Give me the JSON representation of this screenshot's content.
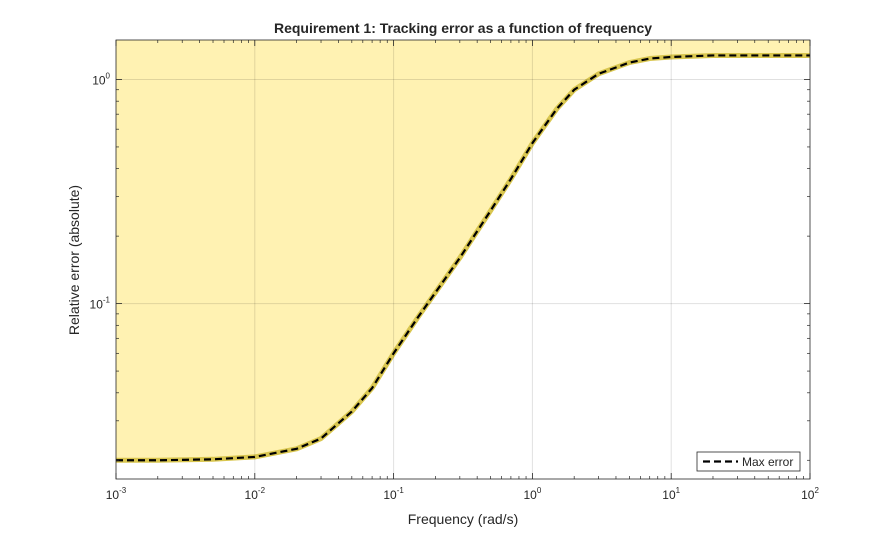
{
  "chart_data": {
    "type": "line",
    "title": "Requirement 1: Tracking error as a function of frequency",
    "xlabel": "Frequency (rad/s)",
    "ylabel": "Relative error (absolute)",
    "xscale": "log",
    "yscale": "log",
    "xlim": [
      0.001,
      100
    ],
    "ylim": [
      0.0165,
      1.5
    ],
    "grid": true,
    "legend_position": "bottom-right",
    "xticks": [
      {
        "base": "10",
        "exp": "-3",
        "value": 0.001
      },
      {
        "base": "10",
        "exp": "-2",
        "value": 0.01
      },
      {
        "base": "10",
        "exp": "-1",
        "value": 0.1
      },
      {
        "base": "10",
        "exp": "0",
        "value": 1
      },
      {
        "base": "10",
        "exp": "1",
        "value": 10
      },
      {
        "base": "10",
        "exp": "2",
        "value": 100
      }
    ],
    "yticks": [
      {
        "base": "10",
        "exp": "-1",
        "value": 0.1
      },
      {
        "base": "10",
        "exp": "0",
        "value": 1
      }
    ],
    "series": [
      {
        "name": "Max error",
        "style": "dashed",
        "color": "#000000",
        "x": [
          0.001,
          0.002,
          0.005,
          0.01,
          0.02,
          0.03,
          0.05,
          0.07,
          0.1,
          0.15,
          0.2,
          0.3,
          0.5,
          0.7,
          1,
          1.5,
          2,
          3,
          5,
          7,
          10,
          20,
          50,
          100
        ],
        "y": [
          0.02,
          0.02,
          0.0202,
          0.0207,
          0.0225,
          0.025,
          0.033,
          0.042,
          0.06,
          0.087,
          0.112,
          0.16,
          0.26,
          0.36,
          0.52,
          0.74,
          0.9,
          1.06,
          1.19,
          1.24,
          1.26,
          1.28,
          1.28,
          1.28
        ]
      }
    ],
    "shading": {
      "region": "above curve",
      "color": "#FFF2B2",
      "edge_color": "#D9C64F"
    },
    "legend": [
      "Max error"
    ]
  }
}
